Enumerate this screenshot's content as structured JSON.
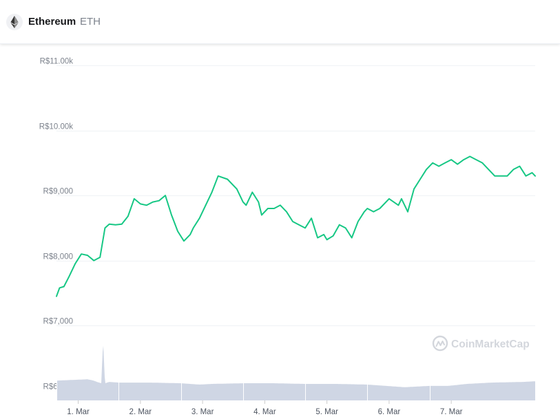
{
  "header": {
    "name": "Ethereum",
    "symbol": "ETH",
    "logo_icon": "ethereum-icon"
  },
  "watermark": {
    "text": "CoinMarketCap",
    "icon": "coinmarketcap-logo-icon"
  },
  "colors": {
    "line": "#16c784",
    "volume": "#cfd6e4",
    "grid": "#eff2f5",
    "axis_text": "#7d838d",
    "watermark": "#d3d6dc"
  },
  "chart_data": {
    "type": "line",
    "title": "",
    "xlabel": "",
    "ylabel": "",
    "grid": "horizontal",
    "ylim": [
      5850,
      11000
    ],
    "xlim": [
      0,
      7.7
    ],
    "y_ticks": [
      {
        "value": 11000,
        "label": "R$11.00k"
      },
      {
        "value": 10000,
        "label": "R$10.00k"
      },
      {
        "value": 9000,
        "label": "R$9,000"
      },
      {
        "value": 8000,
        "label": "R$8,000"
      },
      {
        "value": 7000,
        "label": "R$7,000"
      },
      {
        "value": 6000,
        "label": "R$6,000"
      }
    ],
    "x_ticks": [
      {
        "value": 0.35,
        "label": "1. Mar"
      },
      {
        "value": 1.35,
        "label": "2. Mar"
      },
      {
        "value": 2.35,
        "label": "3. Mar"
      },
      {
        "value": 3.35,
        "label": "4. Mar"
      },
      {
        "value": 4.35,
        "label": "5. Mar"
      },
      {
        "value": 5.35,
        "label": "6. Mar"
      },
      {
        "value": 6.35,
        "label": "7. Mar"
      }
    ],
    "series": [
      {
        "kind": "price",
        "x": [
          0,
          0.05,
          0.12,
          0.2,
          0.3,
          0.4,
          0.5,
          0.6,
          0.7,
          0.78,
          0.85,
          0.95,
          1.05,
          1.15,
          1.25,
          1.35,
          1.45,
          1.55,
          1.65,
          1.75,
          1.85,
          1.95,
          2.05,
          2.15,
          2.2,
          2.3,
          2.4,
          2.5,
          2.6,
          2.75,
          2.9,
          3.0,
          3.05,
          3.15,
          3.25,
          3.3,
          3.4,
          3.5,
          3.6,
          3.7,
          3.8,
          3.9,
          4.0,
          4.1,
          4.2,
          4.3,
          4.35,
          4.45,
          4.55,
          4.65,
          4.75,
          4.85,
          4.95,
          5.0,
          5.1,
          5.2,
          5.35,
          5.5,
          5.55,
          5.65,
          5.75,
          5.85,
          5.95,
          6.05,
          6.15,
          6.25,
          6.35,
          6.45,
          6.55,
          6.65,
          6.75,
          6.85,
          6.95,
          7.05,
          7.15,
          7.25,
          7.35,
          7.45,
          7.55,
          7.65,
          7.7
        ],
        "values": [
          7450,
          7580,
          7600,
          7750,
          7950,
          8100,
          8080,
          8000,
          8050,
          8500,
          8560,
          8550,
          8560,
          8680,
          8950,
          8870,
          8850,
          8900,
          8920,
          9000,
          8700,
          8450,
          8300,
          8400,
          8500,
          8650,
          8850,
          9050,
          9300,
          9250,
          9100,
          8900,
          8850,
          9050,
          8900,
          8700,
          8800,
          8800,
          8850,
          8750,
          8600,
          8550,
          8500,
          8650,
          8350,
          8400,
          8320,
          8380,
          8550,
          8500,
          8350,
          8600,
          8750,
          8800,
          8750,
          8800,
          8950,
          8850,
          8950,
          8750,
          9100,
          9250,
          9400,
          9500,
          9450,
          9500,
          9550,
          9480,
          9550,
          9600,
          9550,
          9500,
          9400,
          9300,
          9300,
          9300,
          9400,
          9450,
          9300,
          9350,
          9300
        ]
      },
      {
        "kind": "volume",
        "x": [
          0,
          0.5,
          0.6,
          0.65,
          0.72,
          0.75,
          0.78,
          0.85,
          1.0,
          1.5,
          2.0,
          2.3,
          2.5,
          3.0,
          3.5,
          4.0,
          4.5,
          5.0,
          5.3,
          5.6,
          6.0,
          6.3,
          6.6,
          7.0,
          7.5,
          7.7
        ],
        "values": [
          0.3,
          0.32,
          0.3,
          0.28,
          0.26,
          0.9,
          0.26,
          0.28,
          0.27,
          0.27,
          0.26,
          0.24,
          0.25,
          0.26,
          0.26,
          0.25,
          0.25,
          0.24,
          0.22,
          0.2,
          0.22,
          0.22,
          0.25,
          0.27,
          0.28,
          0.29
        ]
      }
    ]
  }
}
